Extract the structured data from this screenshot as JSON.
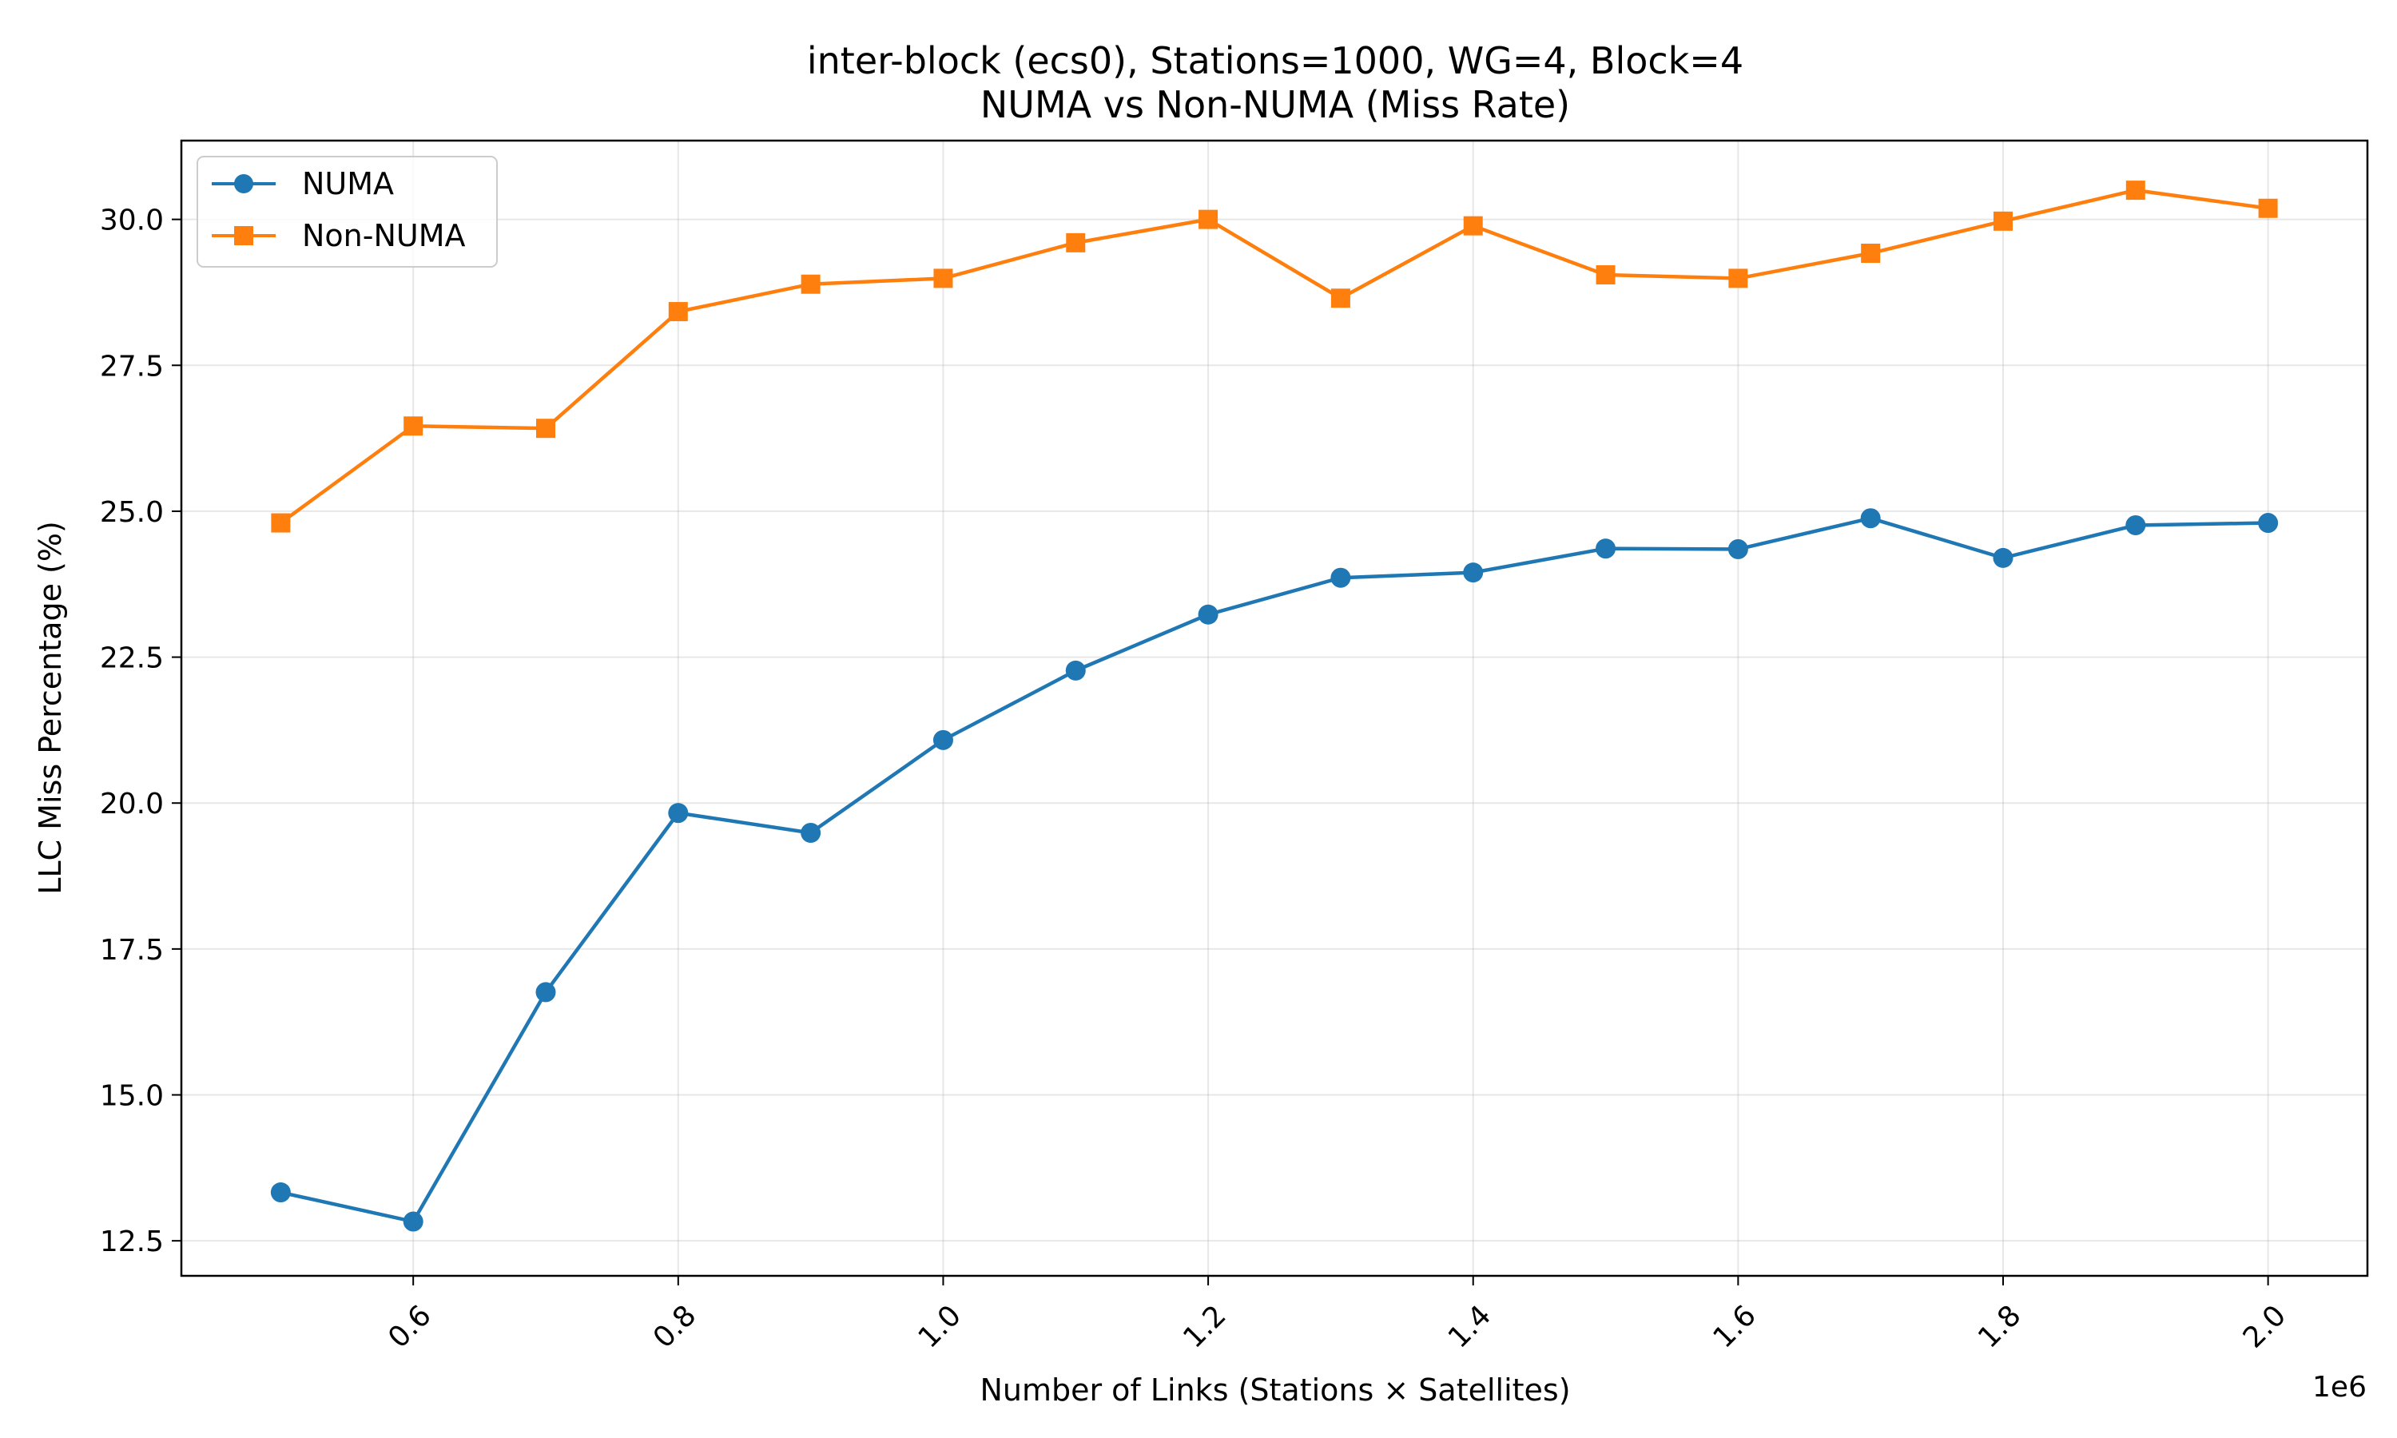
{
  "chart_data": {
    "type": "line",
    "title": "inter-block (ecs0), Stations=1000, WG=4, Block=4",
    "subtitle": "NUMA vs Non-NUMA (Miss Rate)",
    "xlabel": "Number of Links (Stations × Satellites)",
    "ylabel": "LLC Miss Percentage (%)",
    "x_offset_label": "1e6",
    "x": [
      0.5,
      0.6,
      0.7,
      0.8,
      0.9,
      1.0,
      1.1,
      1.2,
      1.3,
      1.4,
      1.5,
      1.6,
      1.7,
      1.8,
      1.9,
      2.0
    ],
    "xlim": [
      0.425,
      2.075
    ],
    "ylim": [
      11.9,
      31.35
    ],
    "x_ticks": [
      0.6,
      0.8,
      1.0,
      1.2,
      1.4,
      1.6,
      1.8,
      2.0
    ],
    "x_tick_labels": [
      "0.6",
      "0.8",
      "1.0",
      "1.2",
      "1.4",
      "1.6",
      "1.8",
      "2.0"
    ],
    "y_ticks": [
      12.5,
      15.0,
      17.5,
      20.0,
      22.5,
      25.0,
      27.5,
      30.0
    ],
    "y_tick_labels": [
      "12.5",
      "15.0",
      "17.5",
      "20.0",
      "22.5",
      "25.0",
      "27.5",
      "30.0"
    ],
    "grid": true,
    "legend_position": "top-left",
    "series": [
      {
        "name": "NUMA",
        "color": "#1f77b4",
        "marker": "circle",
        "values": [
          13.33,
          12.83,
          16.76,
          19.83,
          19.49,
          21.08,
          22.27,
          23.23,
          23.86,
          23.95,
          24.36,
          24.35,
          24.88,
          24.2,
          24.76,
          24.8
        ]
      },
      {
        "name": "Non-NUMA",
        "color": "#ff7f0e",
        "marker": "square",
        "values": [
          24.8,
          26.46,
          26.42,
          28.42,
          28.89,
          28.99,
          29.6,
          30.0,
          28.65,
          29.89,
          29.05,
          28.99,
          29.42,
          29.97,
          30.5,
          30.19
        ]
      }
    ]
  }
}
